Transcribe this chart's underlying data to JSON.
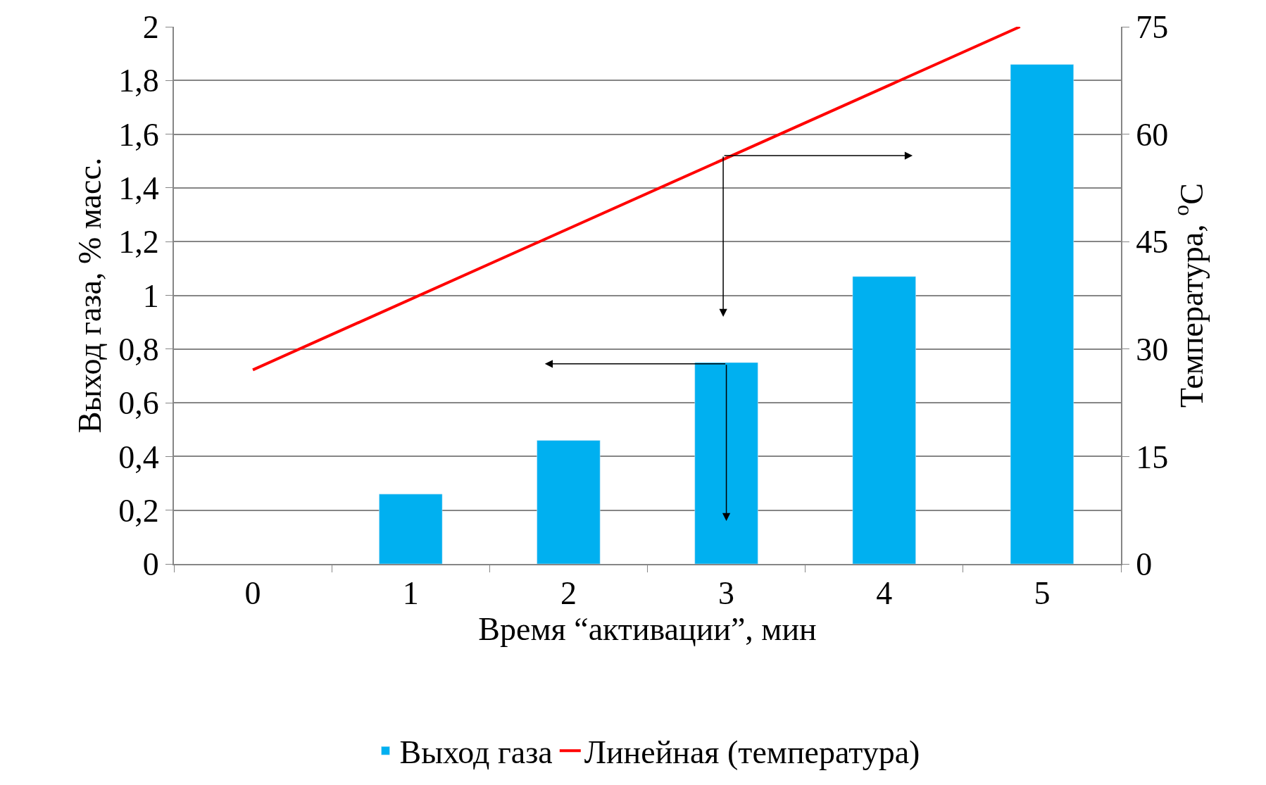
{
  "chart_data": {
    "type": "bar",
    "xlabel": "Время “активации”, мин",
    "ylabel": "Выход газа, % масс.",
    "y2label": "Температура, $^{o}$C",
    "xlim": [
      -0.5,
      5.5
    ],
    "xticks": [
      0,
      1,
      2,
      3,
      4,
      5
    ],
    "series": [
      {
        "name": "Выход газа",
        "color": "#00b0f0",
        "x": [
          1,
          2,
          3,
          4,
          5
        ],
        "values": [
          0.26,
          0.46,
          0.75,
          1.07,
          1.86
        ]
      },
      {
        "name": "Линейная (температура)",
        "type": "line",
        "axis": "y2",
        "color": "#ff0000",
        "x": [
          0,
          4.86
        ],
        "values": [
          27.1,
          75
        ]
      }
    ],
    "ylim": [
      0,
      2
    ],
    "yticks": [
      0,
      {
        "value": 0.2,
        "label": "0,2"
      },
      {
        "value": 0.4,
        "label": "0,4"
      },
      {
        "value": 0.6,
        "label": "0,6"
      },
      {
        "value": 0.8,
        "label": "0,8"
      },
      1,
      {
        "value": 1.2,
        "label": "1,2"
      },
      {
        "value": 1.4,
        "label": "1,4"
      },
      {
        "value": 1.6,
        "label": "1,6"
      },
      {
        "value": 1.8,
        "label": "1,8"
      },
      2
    ],
    "y2lim": [
      0,
      75
    ],
    "y2ticks": [
      0,
      15,
      30,
      45,
      60,
      75
    ],
    "grid": "y",
    "legend": "bottom",
    "marker": "none",
    "line_style": "solid"
  }
}
